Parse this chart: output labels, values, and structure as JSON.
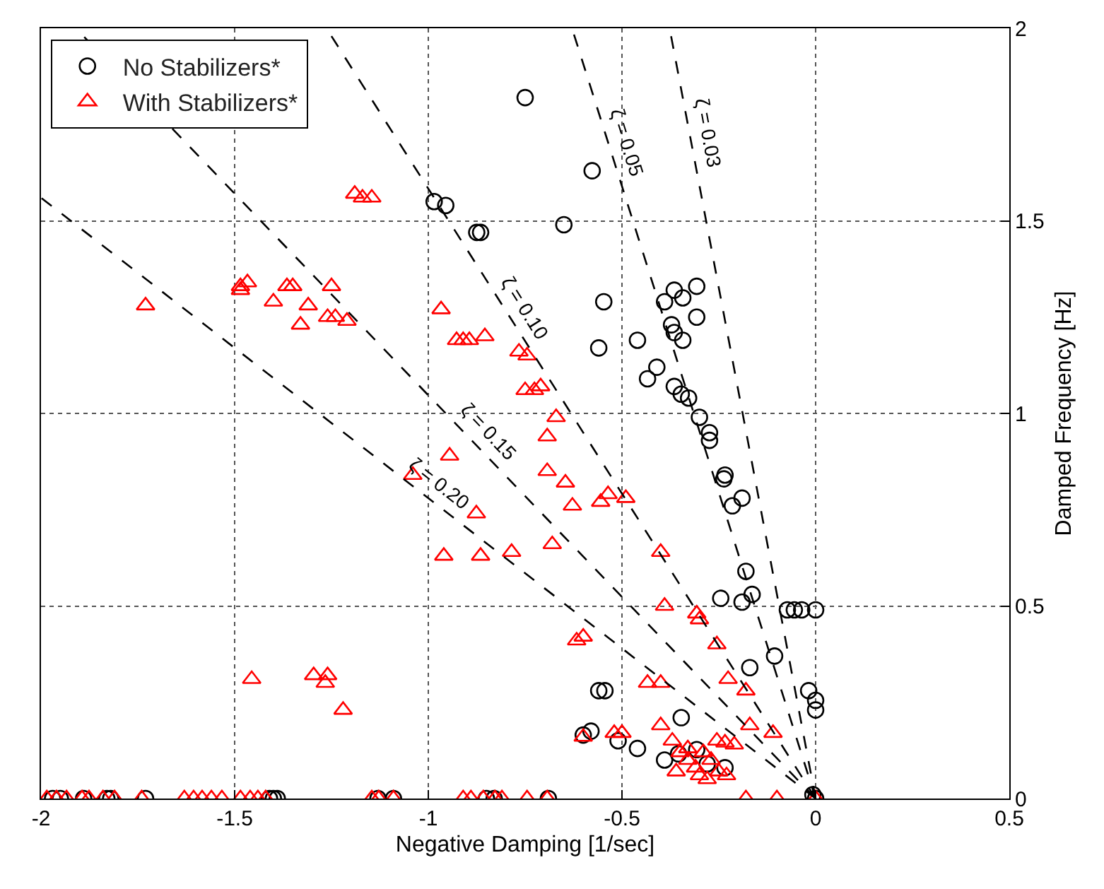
{
  "chart_data": {
    "type": "scatter",
    "xlabel": "Negative Damping [1/sec]",
    "ylabel": "Damped Frequency [Hz]",
    "xlim": [
      -2,
      0.5
    ],
    "xticks": [
      -2,
      -1.5,
      -1,
      -0.5,
      0,
      0.5
    ],
    "ylim": [
      0,
      2
    ],
    "yticks": [
      0,
      0.5,
      1,
      1.5,
      2
    ],
    "grid": true,
    "legend": "top left",
    "series": [
      {
        "name": "No Stabilizers*",
        "marker": "circle",
        "color": "#000000",
        "x": [
          -0.75,
          -0.985,
          -0.955,
          -0.875,
          -0.865,
          -0.65,
          -0.577,
          -0.547,
          -0.56,
          -0.46,
          -0.41,
          -0.434,
          -0.39,
          -0.365,
          -0.343,
          -0.307,
          -0.307,
          -0.372,
          -0.365,
          -0.343,
          -0.365,
          -0.347,
          -0.328,
          -0.3,
          -0.274,
          -0.274,
          -0.234,
          -0.237,
          -0.19,
          -0.215,
          -0.18,
          -0.164,
          -0.19,
          -0.245,
          -0.073,
          -0.055,
          -0.036,
          0,
          -0.106,
          -0.17,
          -0.018,
          0,
          0,
          -0.56,
          -0.544,
          -0.347,
          -0.6,
          -0.58,
          -0.46,
          -0.51,
          -0.39,
          -0.354,
          -0.307,
          -0.28,
          -0.234,
          0,
          -0.007,
          -1.97,
          -1.95,
          -1.89,
          -1.83,
          -1.82,
          -1.73,
          -1.41,
          -1.4,
          -1.39,
          -1.13,
          -1.09,
          -0.85,
          -0.83,
          -0.69
        ],
        "values": [
          1.82,
          1.55,
          1.54,
          1.47,
          1.47,
          1.49,
          1.63,
          1.29,
          1.17,
          1.19,
          1.12,
          1.09,
          1.29,
          1.32,
          1.3,
          1.33,
          1.25,
          1.23,
          1.21,
          1.19,
          1.07,
          1.05,
          1.04,
          0.99,
          0.95,
          0.93,
          0.84,
          0.83,
          0.78,
          0.76,
          0.59,
          0.53,
          0.51,
          0.52,
          0.49,
          0.49,
          0.49,
          0.49,
          0.37,
          0.34,
          0.28,
          0.255,
          0.23,
          0.28,
          0.28,
          0.21,
          0.165,
          0.175,
          0.13,
          0.15,
          0.1,
          0.116,
          0.127,
          0.09,
          0.08,
          0,
          0.01,
          0,
          0,
          0,
          0,
          0,
          0,
          0,
          0,
          0,
          0,
          0,
          0,
          0,
          0
        ]
      },
      {
        "name": "With Stabilizers*",
        "marker": "triangle",
        "color": "#ff0000",
        "x": [
          -1.19,
          -1.17,
          -1.146,
          -1.73,
          -1.485,
          -1.467,
          -1.485,
          -1.4,
          -1.365,
          -1.35,
          -1.25,
          -1.31,
          -1.33,
          -1.26,
          -1.24,
          -1.21,
          -0.967,
          -0.927,
          -0.91,
          -0.894,
          -0.854,
          -0.766,
          -0.745,
          -0.75,
          -0.726,
          -0.71,
          -0.67,
          -0.693,
          -0.945,
          -0.693,
          -0.646,
          -0.628,
          -1.04,
          -0.876,
          -0.68,
          -0.96,
          -0.865,
          -0.785,
          -0.617,
          -1.456,
          -1.296,
          -1.26,
          -1.266,
          -1.22,
          -0.555,
          -0.536,
          -0.49,
          -0.4,
          -0.39,
          -0.307,
          -0.3,
          -0.6,
          -0.255,
          -0.226,
          -0.18,
          -0.434,
          -0.4,
          -0.17,
          -0.11,
          -0.6,
          -0.52,
          -0.5,
          -0.255,
          -0.234,
          -0.21,
          -0.4,
          -0.37,
          -0.35,
          -0.33,
          -0.31,
          -0.3,
          -0.28,
          -0.27,
          -0.25,
          -0.33,
          -0.36,
          -0.29,
          -0.23,
          -1.985,
          -1.96,
          -1.934,
          -1.894,
          -1.876,
          -1.84,
          -1.81,
          -1.74,
          -1.63,
          -1.606,
          -1.584,
          -1.56,
          -1.533,
          -1.485,
          -1.46,
          -1.44,
          -1.42,
          -1.146,
          -1.128,
          -1.09,
          -0.91,
          -0.89,
          -0.858,
          -0.828,
          -0.81,
          -0.745,
          -0.693,
          -0.18,
          -0.1,
          0
        ],
        "values": [
          1.57,
          1.56,
          1.56,
          1.28,
          1.33,
          1.34,
          1.32,
          1.29,
          1.33,
          1.33,
          1.33,
          1.28,
          1.23,
          1.25,
          1.25,
          1.24,
          1.27,
          1.19,
          1.19,
          1.19,
          1.2,
          1.16,
          1.15,
          1.06,
          1.06,
          1.07,
          0.99,
          0.94,
          0.89,
          0.85,
          0.82,
          0.76,
          0.84,
          0.74,
          0.66,
          0.63,
          0.63,
          0.64,
          0.41,
          0.31,
          0.32,
          0.32,
          0.3,
          0.23,
          0.77,
          0.79,
          0.78,
          0.64,
          0.5,
          0.48,
          0.465,
          0.42,
          0.4,
          0.31,
          0.28,
          0.3,
          0.3,
          0.19,
          0.17,
          0.16,
          0.17,
          0.17,
          0.15,
          0.145,
          0.14,
          0.19,
          0.15,
          0.12,
          0.1,
          0.08,
          0.06,
          0.05,
          0.1,
          0.07,
          0.13,
          0.07,
          0.12,
          0.06,
          0,
          0,
          0,
          0,
          0,
          0,
          0,
          0,
          0,
          0,
          0,
          0,
          0,
          0,
          0,
          0,
          0,
          0,
          0,
          0,
          0,
          0,
          0,
          0,
          0,
          0,
          0,
          0,
          0,
          0
        ]
      },
      {
        "type": "line",
        "line_style": "dashed",
        "marker": "none",
        "color": "#000000",
        "x": [
          0,
          -0.377
        ],
        "values": [
          0,
          2
        ]
      },
      {
        "type": "line",
        "line_style": "dashed",
        "marker": "none",
        "color": "#000000",
        "x": [
          0,
          -0.629
        ],
        "values": [
          0,
          2
        ]
      },
      {
        "type": "line",
        "line_style": "dashed",
        "marker": "none",
        "color": "#000000",
        "x": [
          0,
          -1.263
        ],
        "values": [
          0,
          2
        ]
      },
      {
        "type": "line",
        "line_style": "dashed",
        "marker": "none",
        "color": "#000000",
        "x": [
          0,
          -1.91
        ],
        "values": [
          0,
          2
        ]
      },
      {
        "type": "line",
        "line_style": "dashed",
        "marker": "none",
        "color": "#000000",
        "x": [
          0,
          -2
        ],
        "values": [
          0,
          1.56
        ]
      }
    ],
    "annotations": [
      {
        "text": "ζ = 0.03",
        "x": -0.324,
        "y": 1.719
      },
      {
        "text": "ζ = 0.05",
        "x": -0.531,
        "y": 1.689
      },
      {
        "text": "ζ = 0.10",
        "x": -0.789,
        "y": 1.249
      },
      {
        "text": "ζ = 0.15",
        "x": -0.879,
        "y": 0.92
      },
      {
        "text": "ζ = 0.20",
        "x": -1.0,
        "y": 0.78
      }
    ]
  }
}
